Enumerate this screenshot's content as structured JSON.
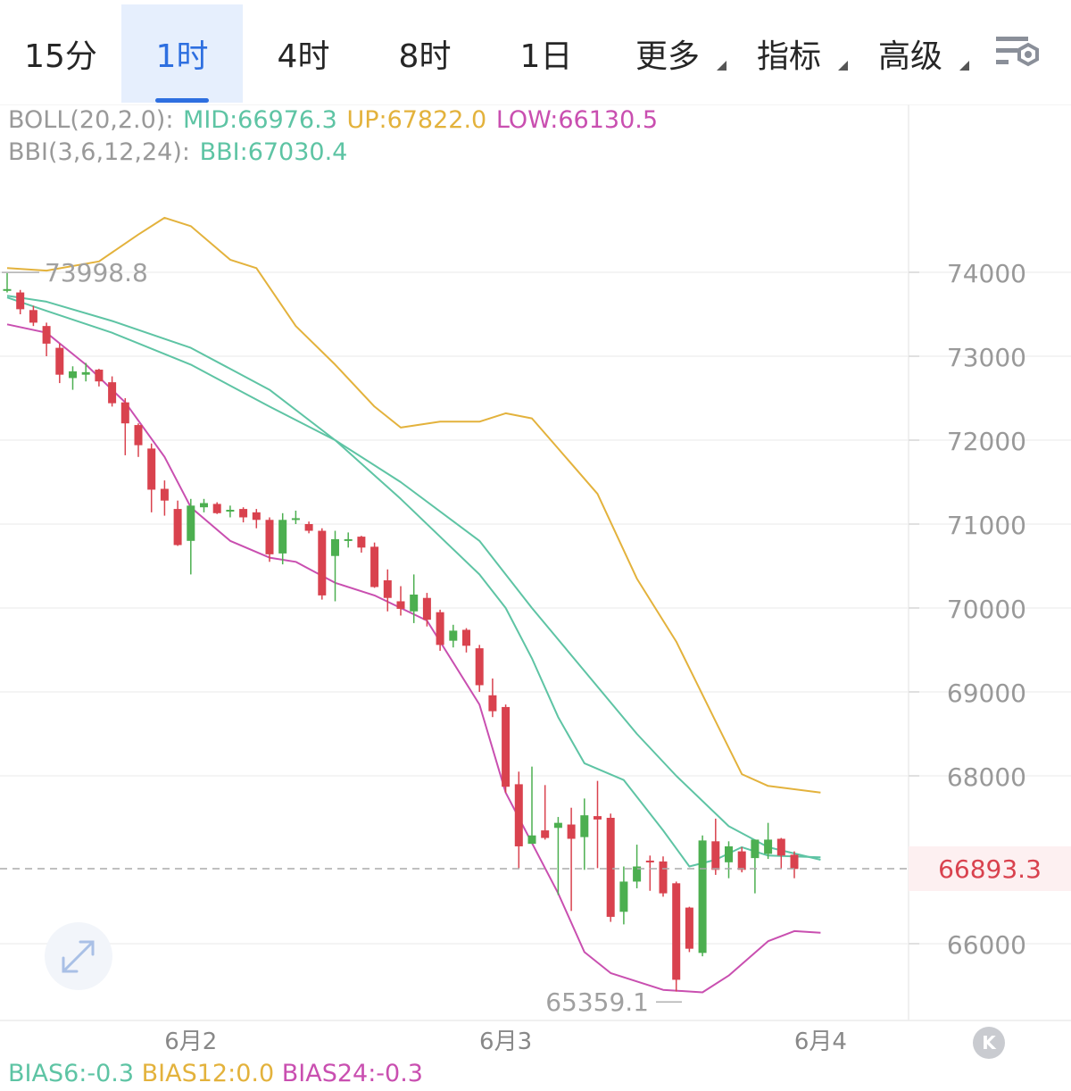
{
  "tabs": [
    {
      "label": "15分",
      "active": false,
      "dropdown": false
    },
    {
      "label": "1时",
      "active": true,
      "dropdown": false
    },
    {
      "label": "4时",
      "active": false,
      "dropdown": false
    },
    {
      "label": "8时",
      "active": false,
      "dropdown": false
    },
    {
      "label": "1日",
      "active": false,
      "dropdown": false
    },
    {
      "label": "更多",
      "active": false,
      "dropdown": true
    },
    {
      "label": "指标",
      "active": false,
      "dropdown": true
    },
    {
      "label": "高级",
      "active": false,
      "dropdown": true
    }
  ],
  "settings_icon": "chart-settings-icon",
  "indicators": {
    "boll_name": "BOLL(20,2.0):",
    "boll_mid": "MID:66976.3",
    "boll_up": "UP:67822.0",
    "boll_low": "LOW:66130.5",
    "bbi_name": "BBI(3,6,12,24):",
    "bbi_value": "BBI:67030.4",
    "bias6": "BIAS6:-0.3",
    "bias12": "BIAS12:0.0",
    "bias24": "BIAS24:-0.3"
  },
  "colors": {
    "up": "#4caf50",
    "down": "#d9424e",
    "mid": "#5ec4a4",
    "upper": "#e3b23c",
    "lower": "#c94fb0",
    "label_gray": "#999999",
    "price_tag": "#d9424e"
  },
  "current_price": "66893.3",
  "annotations": {
    "high": "73998.8",
    "low": "65359.1"
  },
  "chart_data": {
    "type": "candlestick",
    "ylim": [
      65100,
      75900
    ],
    "yticks": [
      74000,
      73000,
      72000,
      71000,
      70000,
      69000,
      68000,
      66000
    ],
    "x_labels": [
      {
        "label": "6月2",
        "index": 14
      },
      {
        "label": "6月3",
        "index": 38
      },
      {
        "label": "6月4",
        "index": 62
      }
    ],
    "current_price": 66893.3,
    "high": 73998.8,
    "low": 65359.1,
    "candles": [
      [
        73780,
        73800,
        73990,
        73760
      ],
      [
        73760,
        73560,
        73790,
        73500
      ],
      [
        73550,
        73400,
        73600,
        73360
      ],
      [
        73360,
        73150,
        73400,
        73000
      ],
      [
        73100,
        72780,
        73150,
        72680
      ],
      [
        72740,
        72820,
        72880,
        72600
      ],
      [
        72780,
        72810,
        72920,
        72700
      ],
      [
        72840,
        72700,
        72850,
        72640
      ],
      [
        72690,
        72440,
        72760,
        72400
      ],
      [
        72450,
        72200,
        72500,
        71820
      ],
      [
        72180,
        71940,
        72200,
        71800
      ],
      [
        71900,
        71410,
        71960,
        71140
      ],
      [
        71420,
        71280,
        71520,
        71100
      ],
      [
        71180,
        70750,
        71280,
        70740
      ],
      [
        70800,
        71220,
        71300,
        70400
      ],
      [
        71200,
        71250,
        71300,
        71140
      ],
      [
        71240,
        71130,
        71260,
        71120
      ],
      [
        71160,
        71170,
        71220,
        71080
      ],
      [
        71180,
        71080,
        71200,
        71020
      ],
      [
        71140,
        71050,
        71180,
        70950
      ],
      [
        71050,
        70640,
        71080,
        70550
      ],
      [
        70650,
        71050,
        71130,
        70520
      ],
      [
        71070,
        71070,
        71160,
        71000
      ],
      [
        71000,
        70920,
        71030,
        70890
      ],
      [
        70920,
        70150,
        70950,
        70100
      ],
      [
        70620,
        70820,
        70920,
        70080
      ],
      [
        70800,
        70820,
        70900,
        70720
      ],
      [
        70850,
        70720,
        70860,
        70660
      ],
      [
        70730,
        70250,
        70780,
        70240
      ],
      [
        70330,
        70120,
        70460,
        69960
      ],
      [
        70080,
        69990,
        70260,
        69910
      ],
      [
        69960,
        70160,
        70400,
        69820
      ],
      [
        70120,
        69860,
        70180,
        69780
      ],
      [
        69950,
        69560,
        69980,
        69490
      ],
      [
        69610,
        69730,
        69800,
        69530
      ],
      [
        69740,
        69550,
        69760,
        69470
      ],
      [
        69520,
        69080,
        69560,
        69000
      ],
      [
        68960,
        68770,
        69160,
        68700
      ],
      [
        68820,
        67870,
        68850,
        67800
      ],
      [
        67900,
        67160,
        68050,
        66900
      ],
      [
        67190,
        67290,
        68110,
        67220
      ],
      [
        67350,
        67260,
        67890,
        67240
      ],
      [
        67380,
        67440,
        67510,
        66580
      ],
      [
        67420,
        67250,
        67620,
        66390
      ],
      [
        67270,
        67530,
        67730,
        66880
      ],
      [
        67520,
        67480,
        67940,
        66900
      ],
      [
        67500,
        66320,
        67550,
        66260
      ],
      [
        66380,
        66740,
        66920,
        66230
      ],
      [
        66740,
        66920,
        67180,
        66660
      ],
      [
        66990,
        66980,
        67050,
        66630
      ],
      [
        66980,
        66600,
        67040,
        66560
      ],
      [
        66720,
        65570,
        66740,
        65430
      ],
      [
        66430,
        65940,
        66440,
        65900
      ],
      [
        65890,
        67230,
        67290,
        65850
      ],
      [
        67220,
        66880,
        67490,
        66820
      ],
      [
        66970,
        67160,
        67220,
        66780
      ],
      [
        67100,
        66880,
        67150,
        66850
      ],
      [
        67020,
        67240,
        67240,
        66600
      ],
      [
        67070,
        67240,
        67440,
        67010
      ],
      [
        67250,
        67050,
        67260,
        66890
      ],
      [
        67060,
        66890,
        67100,
        66780
      ]
    ],
    "boll_mid": [
      [
        0,
        73700
      ],
      [
        3,
        73540
      ],
      [
        8,
        73280
      ],
      [
        14,
        72900
      ],
      [
        20,
        72400
      ],
      [
        25,
        72000
      ],
      [
        30,
        71500
      ],
      [
        36,
        70800
      ],
      [
        40,
        70000
      ],
      [
        44,
        69250
      ],
      [
        48,
        68500
      ],
      [
        51,
        68000
      ],
      [
        55,
        67400
      ],
      [
        58,
        67150
      ],
      [
        62,
        67000
      ]
    ],
    "boll_upper": [
      [
        0,
        74050
      ],
      [
        3,
        74020
      ],
      [
        7,
        74130
      ],
      [
        10,
        74450
      ],
      [
        12,
        74650
      ],
      [
        14,
        74550
      ],
      [
        17,
        74150
      ],
      [
        19,
        74050
      ],
      [
        22,
        73360
      ],
      [
        25,
        72900
      ],
      [
        28,
        72400
      ],
      [
        30,
        72150
      ],
      [
        33,
        72220
      ],
      [
        36,
        72220
      ],
      [
        38,
        72320
      ],
      [
        40,
        72260
      ],
      [
        42,
        71900
      ],
      [
        45,
        71360
      ],
      [
        48,
        70350
      ],
      [
        51,
        69600
      ],
      [
        54,
        68650
      ],
      [
        56,
        68020
      ],
      [
        58,
        67880
      ],
      [
        62,
        67800
      ]
    ],
    "boll_lower": [
      [
        0,
        73380
      ],
      [
        3,
        73280
      ],
      [
        6,
        72900
      ],
      [
        9,
        72450
      ],
      [
        12,
        71800
      ],
      [
        14,
        71200
      ],
      [
        17,
        70800
      ],
      [
        20,
        70600
      ],
      [
        22,
        70550
      ],
      [
        25,
        70300
      ],
      [
        28,
        70150
      ],
      [
        32,
        69850
      ],
      [
        36,
        68850
      ],
      [
        38,
        67800
      ],
      [
        40,
        67200
      ],
      [
        42,
        66600
      ],
      [
        44,
        65900
      ],
      [
        46,
        65650
      ],
      [
        50,
        65450
      ],
      [
        53,
        65420
      ],
      [
        55,
        65620
      ],
      [
        58,
        66030
      ],
      [
        60,
        66150
      ],
      [
        62,
        66130
      ]
    ],
    "bbi": [
      [
        0,
        73720
      ],
      [
        3,
        73650
      ],
      [
        8,
        73420
      ],
      [
        14,
        73100
      ],
      [
        20,
        72600
      ],
      [
        25,
        72000
      ],
      [
        30,
        71300
      ],
      [
        36,
        70400
      ],
      [
        38,
        70000
      ],
      [
        40,
        69400
      ],
      [
        42,
        68700
      ],
      [
        44,
        68150
      ],
      [
        47,
        67950
      ],
      [
        50,
        67350
      ],
      [
        52,
        66920
      ],
      [
        54,
        67000
      ],
      [
        56,
        67150
      ],
      [
        58,
        67050
      ],
      [
        62,
        67030
      ]
    ]
  }
}
